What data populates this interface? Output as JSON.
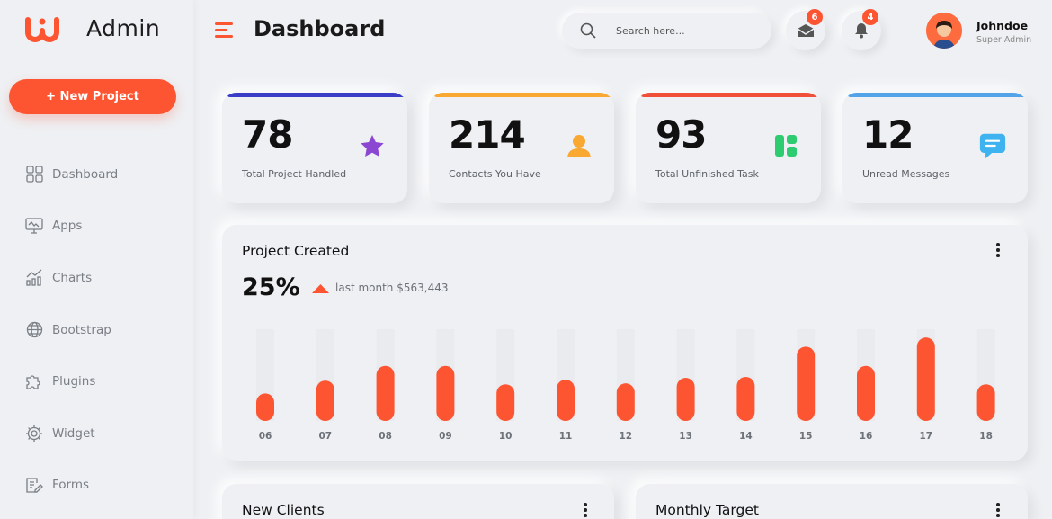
{
  "brand": {
    "name": "Admin",
    "logo_color": "#fd5532"
  },
  "sidebar": {
    "new_project_label": "+ New Project",
    "items": [
      {
        "label": "Dashboard",
        "icon": "dashboard-grid-icon"
      },
      {
        "label": "Apps",
        "icon": "monitor-icon"
      },
      {
        "label": "Charts",
        "icon": "chart-icon"
      },
      {
        "label": "Bootstrap",
        "icon": "globe-icon"
      },
      {
        "label": "Plugins",
        "icon": "puzzle-icon"
      },
      {
        "label": "Widget",
        "icon": "gear-icon"
      },
      {
        "label": "Forms",
        "icon": "form-edit-icon"
      }
    ]
  },
  "header": {
    "title": "Dashboard",
    "search_placeholder": "Search here...",
    "mail_count": "6",
    "notification_count": "4",
    "user": {
      "name": "Johndoe",
      "role": "Super Admin"
    }
  },
  "stats": [
    {
      "value": "78",
      "label": "Total Project Handled",
      "color": "#3a3dc6",
      "icon": "star-icon"
    },
    {
      "value": "214",
      "label": "Contacts You Have",
      "color": "#f9a832",
      "icon": "user-icon"
    },
    {
      "value": "93",
      "label": "Total Unfinished Task",
      "color": "#f0503a",
      "icon": "layout-icon"
    },
    {
      "value": "12",
      "label": "Unread Messages",
      "color": "#52a3e8",
      "icon": "chat-icon"
    }
  ],
  "project_created": {
    "title": "Project Created",
    "percent": "25%",
    "trend_label": "last month $563,443"
  },
  "chart_data": {
    "type": "bar",
    "categories": [
      "06",
      "07",
      "08",
      "09",
      "10",
      "11",
      "12",
      "13",
      "14",
      "15",
      "16",
      "17",
      "18"
    ],
    "values": [
      30,
      44,
      60,
      60,
      40,
      45,
      41,
      47,
      48,
      81,
      60,
      91,
      40
    ],
    "ylim": [
      0,
      100
    ],
    "bar_color": "#fd5532",
    "track_color": "#e8e8ea",
    "grid": false
  },
  "bottom_cards": {
    "new_clients_title": "New Clients",
    "monthly_target_title": "Monthly Target"
  }
}
